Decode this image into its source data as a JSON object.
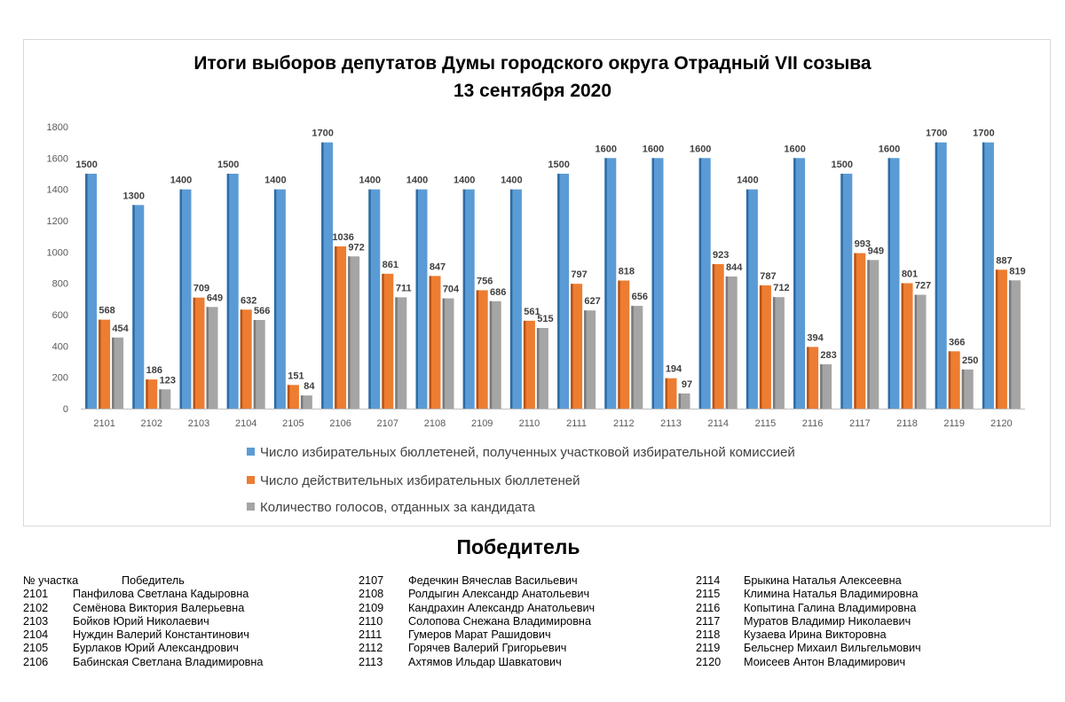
{
  "chart_data": {
    "type": "bar",
    "title": "Итоги выборов депутатов Думы городского округа Отрадный VII созыва",
    "subtitle": "13 сентября   2020",
    "categories": [
      "2101",
      "2102",
      "2103",
      "2104",
      "2105",
      "2106",
      "2107",
      "2108",
      "2109",
      "2110",
      "2111",
      "2112",
      "2113",
      "2114",
      "2115",
      "2116",
      "2117",
      "2118",
      "2119",
      "2120"
    ],
    "series": [
      {
        "name": "Число избирательных бюллетеней, полученных участковой избирательной комиссией",
        "color": "#5b9bd5",
        "values": [
          1500,
          1300,
          1400,
          1500,
          1400,
          1700,
          1400,
          1400,
          1400,
          1400,
          1500,
          1600,
          1600,
          1600,
          1400,
          1600,
          1500,
          1600,
          1700,
          1700
        ]
      },
      {
        "name": "Число действительных избирательных бюллетеней",
        "color": "#ed7d31",
        "values": [
          568,
          186,
          709,
          632,
          151,
          1036,
          861,
          847,
          756,
          561,
          797,
          818,
          194,
          923,
          787,
          394,
          993,
          801,
          366,
          887
        ]
      },
      {
        "name": "Количество голосов, отданных за кандидата",
        "color": "#a5a5a5",
        "values": [
          454,
          123,
          649,
          566,
          84,
          972,
          711,
          704,
          686,
          515,
          627,
          656,
          97,
          844,
          712,
          283,
          949,
          727,
          250,
          819
        ]
      }
    ],
    "yticks": [
      0,
      200,
      400,
      600,
      800,
      1000,
      1200,
      1400,
      1600,
      1800
    ],
    "ylim": [
      0,
      1800
    ],
    "legend_position": "bottom",
    "grid": false
  },
  "winners": {
    "title": "Победитель",
    "header_num": "№ участка",
    "header_name": "Победитель",
    "columns": [
      [
        {
          "num": "2101",
          "name": "Панфилова Светлана Кадыровна"
        },
        {
          "num": "2102",
          "name": "Семёнова Виктория Валерьевна"
        },
        {
          "num": "2103",
          "name": "Бойков Юрий Николаевич"
        },
        {
          "num": "2104",
          "name": "Нуждин Валерий Константинович"
        },
        {
          "num": "2105",
          "name": "Бурлаков Юрий Александрович"
        },
        {
          "num": "2106",
          "name": "Бабинская Светлана Владимировна"
        }
      ],
      [
        {
          "num": "2107",
          "name": "Федечкин Вячеслав Васильевич"
        },
        {
          "num": "2108",
          "name": "Ролдыгин Александр Анатольевич"
        },
        {
          "num": "2109",
          "name": "Кандрахин Александр Анатольевич"
        },
        {
          "num": "2110",
          "name": "Солопова Снежана Владимировна"
        },
        {
          "num": "2111",
          "name": "Гумеров Марат Рашидович"
        },
        {
          "num": "2112",
          "name": "Горячев Валерий Григорьевич"
        },
        {
          "num": "2113",
          "name": "Ахтямов Ильдар Шавкатович"
        }
      ],
      [
        {
          "num": "2114",
          "name": "Брыкина Наталья Алексеевна"
        },
        {
          "num": "2115",
          "name": "Климина Наталья Владимировна"
        },
        {
          "num": "2116",
          "name": "Копытина Галина Владимировна"
        },
        {
          "num": "2117",
          "name": "Муратов Владимир Николаевич"
        },
        {
          "num": "2118",
          "name": "Кузаева Ирина Викторовна"
        },
        {
          "num": "2119",
          "name": "Бельснер Михаил Вильгельмович"
        },
        {
          "num": "2120",
          "name": "Моисеев Антон Владимирович"
        }
      ]
    ]
  }
}
